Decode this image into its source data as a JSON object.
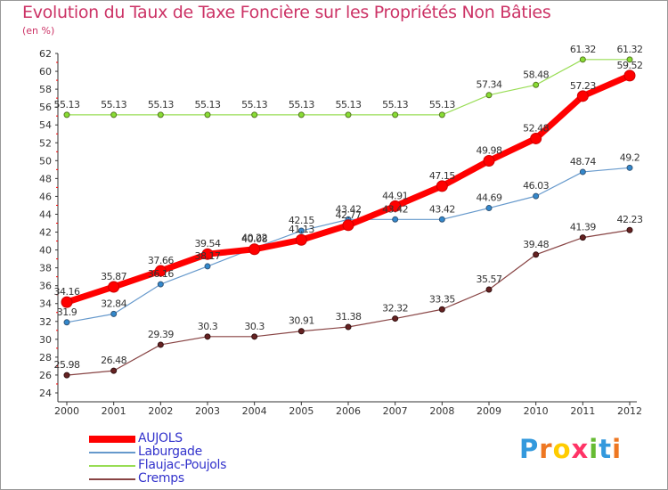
{
  "chart_data": {
    "type": "line",
    "title": "Evolution du Taux de Taxe Foncière sur les Propriétés Non Bâties",
    "subtitle": "(en %)",
    "x": [
      "2000",
      "2001",
      "2002",
      "2003",
      "2004",
      "2005",
      "2006",
      "2007",
      "2008",
      "2009",
      "2010",
      "2011",
      "2012"
    ],
    "ylim": [
      24,
      62
    ],
    "yticks": [
      24,
      26,
      28,
      30,
      32,
      34,
      36,
      38,
      40,
      42,
      44,
      46,
      48,
      50,
      52,
      54,
      56,
      58,
      60,
      62
    ],
    "grid": false,
    "legend_position": "bottom-left",
    "series": [
      {
        "name": "AUJOLS",
        "color": "#ff0000",
        "values": [
          34.16,
          35.87,
          37.66,
          39.54,
          40.08,
          41.13,
          42.77,
          44.91,
          47.15,
          49.98,
          52.48,
          57.23,
          59.52
        ],
        "labels": [
          "34.16",
          "35.87",
          "37.66",
          "39.54",
          "40.08",
          "41.13",
          "42.77",
          "44.91",
          "47.15",
          "49.98",
          "52.48",
          "57.23",
          "59.52"
        ]
      },
      {
        "name": "Laburgade",
        "color": "#6699cc",
        "values": [
          31.9,
          32.84,
          36.16,
          38.17,
          40.22,
          42.15,
          43.42,
          43.42,
          43.42,
          44.69,
          46.03,
          48.74,
          49.2
        ],
        "labels": [
          "31.9",
          "32.84",
          "36.16",
          "38.17",
          "40.22",
          "42.15",
          "43.42",
          "43.42",
          "43.42",
          "44.69",
          "46.03",
          "48.74",
          "49.2"
        ]
      },
      {
        "name": "Flaujac-Poujols",
        "color": "#99dd55",
        "values": [
          55.13,
          55.13,
          55.13,
          55.13,
          55.13,
          55.13,
          55.13,
          55.13,
          55.13,
          57.34,
          58.48,
          61.32,
          61.32
        ],
        "labels": [
          "55.13",
          "55.13",
          "55.13",
          "55.13",
          "55.13",
          "55.13",
          "55.13",
          "55.13",
          "55.13",
          "57.34",
          "58.48",
          "61.32",
          "61.32"
        ]
      },
      {
        "name": "Cremps",
        "color": "#884444",
        "values": [
          25.98,
          26.48,
          29.39,
          30.3,
          30.3,
          30.91,
          31.38,
          32.32,
          33.35,
          35.57,
          39.48,
          41.39,
          42.23
        ],
        "labels": [
          "25.98",
          "26.48",
          "29.39",
          "30.3",
          "30.3",
          "30.91",
          "31.38",
          "32.32",
          "33.35",
          "35.57",
          "39.48",
          "41.39",
          "42.23"
        ]
      }
    ]
  },
  "brand": {
    "letters": [
      "P",
      "r",
      "o",
      "x",
      "i",
      "t",
      "i"
    ],
    "colors": [
      "#3399dd",
      "#ee7722",
      "#ffcc00",
      "#ff3366",
      "#66bb33",
      "#3399dd",
      "#ee7722"
    ]
  }
}
